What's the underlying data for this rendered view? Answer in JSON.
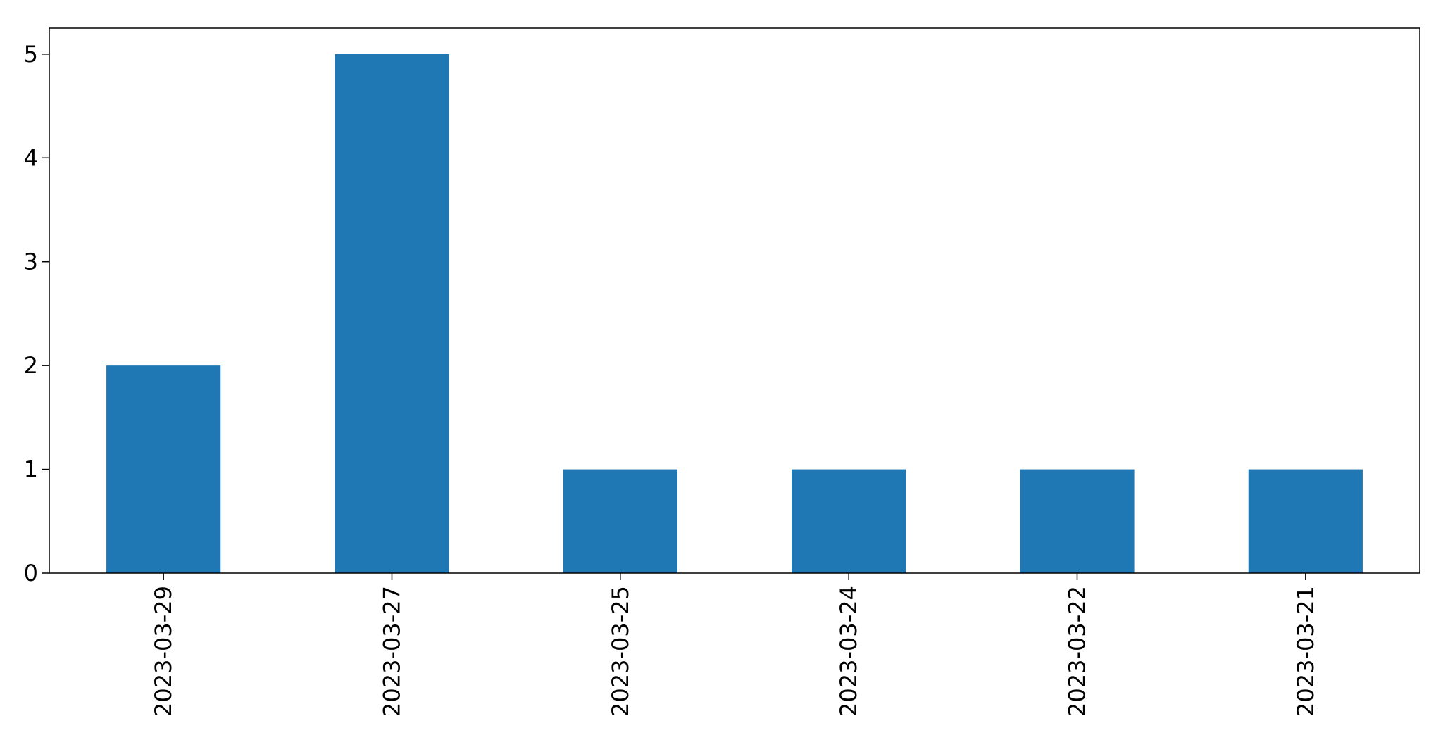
{
  "chart_data": {
    "type": "bar",
    "categories": [
      "2023-03-29",
      "2023-03-27",
      "2023-03-25",
      "2023-03-24",
      "2023-03-22",
      "2023-03-21"
    ],
    "values": [
      2,
      5,
      1,
      1,
      1,
      1
    ],
    "title": "",
    "xlabel": "",
    "ylabel": "",
    "ylim": [
      0,
      5.25
    ],
    "yticks": [
      0,
      1,
      2,
      3,
      4,
      5
    ],
    "grid": false,
    "x_tick_rotation": "vertical",
    "colors": {
      "bar": "#1f77b4",
      "axis": "#000000",
      "background": "#ffffff"
    }
  }
}
